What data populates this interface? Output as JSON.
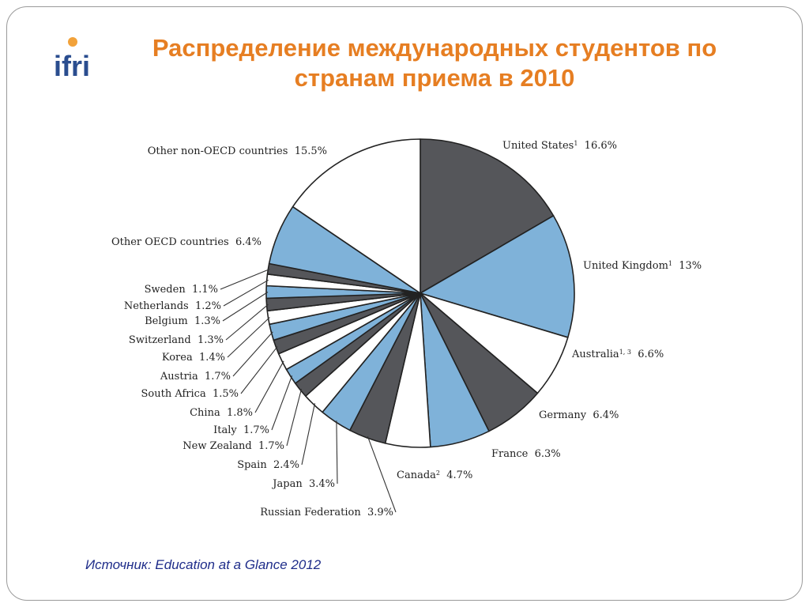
{
  "logo_text": "ifri",
  "title": "Распределение международных студентов по странам приема в 2010",
  "source": "Источник: Education at a Glance 2012",
  "colors": {
    "title": "#e67e22",
    "source": "#1f2d8a",
    "dark": "#55565a",
    "blue": "#7fb2d9",
    "white": "#ffffff",
    "outline": "#222222"
  },
  "chart_data": {
    "type": "pie",
    "slices": [
      {
        "label": "United States",
        "sup": "1",
        "value": 16.6,
        "value_label": "16.6%",
        "color": "dark"
      },
      {
        "label": "United Kingdom",
        "sup": "1",
        "value": 13,
        "value_label": "13%",
        "color": "blue"
      },
      {
        "label": "Australia",
        "sup": "1, 3",
        "value": 6.6,
        "value_label": "6.6%",
        "color": "white"
      },
      {
        "label": "Germany",
        "sup": "",
        "value": 6.4,
        "value_label": "6.4%",
        "color": "dark"
      },
      {
        "label": "France",
        "sup": "",
        "value": 6.3,
        "value_label": "6.3%",
        "color": "blue"
      },
      {
        "label": "Canada",
        "sup": "2",
        "value": 4.7,
        "value_label": "4.7%",
        "color": "white"
      },
      {
        "label": "Russian Federation",
        "sup": "",
        "value": 3.9,
        "value_label": "3.9%",
        "color": "dark"
      },
      {
        "label": "Japan",
        "sup": "",
        "value": 3.4,
        "value_label": "3.4%",
        "color": "blue"
      },
      {
        "label": "Spain",
        "sup": "",
        "value": 2.4,
        "value_label": "2.4%",
        "color": "white"
      },
      {
        "label": "New Zealand",
        "sup": "",
        "value": 1.7,
        "value_label": "1.7%",
        "color": "dark"
      },
      {
        "label": "Italy",
        "sup": "",
        "value": 1.7,
        "value_label": "1.7%",
        "color": "blue"
      },
      {
        "label": "China",
        "sup": "",
        "value": 1.8,
        "value_label": "1.8%",
        "color": "white"
      },
      {
        "label": "South Africa",
        "sup": "",
        "value": 1.5,
        "value_label": "1.5%",
        "color": "dark"
      },
      {
        "label": "Austria",
        "sup": "",
        "value": 1.7,
        "value_label": "1.7%",
        "color": "blue"
      },
      {
        "label": "Korea",
        "sup": "",
        "value": 1.4,
        "value_label": "1.4%",
        "color": "white"
      },
      {
        "label": "Switzerland",
        "sup": "",
        "value": 1.3,
        "value_label": "1.3%",
        "color": "dark"
      },
      {
        "label": "Belgium",
        "sup": "",
        "value": 1.3,
        "value_label": "1.3%",
        "color": "blue"
      },
      {
        "label": "Netherlands",
        "sup": "",
        "value": 1.2,
        "value_label": "1.2%",
        "color": "white"
      },
      {
        "label": "Sweden",
        "sup": "",
        "value": 1.1,
        "value_label": "1.1%",
        "color": "dark"
      },
      {
        "label": "Other OECD countries",
        "sup": "",
        "value": 6.4,
        "value_label": "6.4%",
        "color": "blue"
      },
      {
        "label": "Other non-OECD countries",
        "sup": "",
        "value": 15.5,
        "value_label": "15.5%",
        "color": "white"
      }
    ]
  }
}
